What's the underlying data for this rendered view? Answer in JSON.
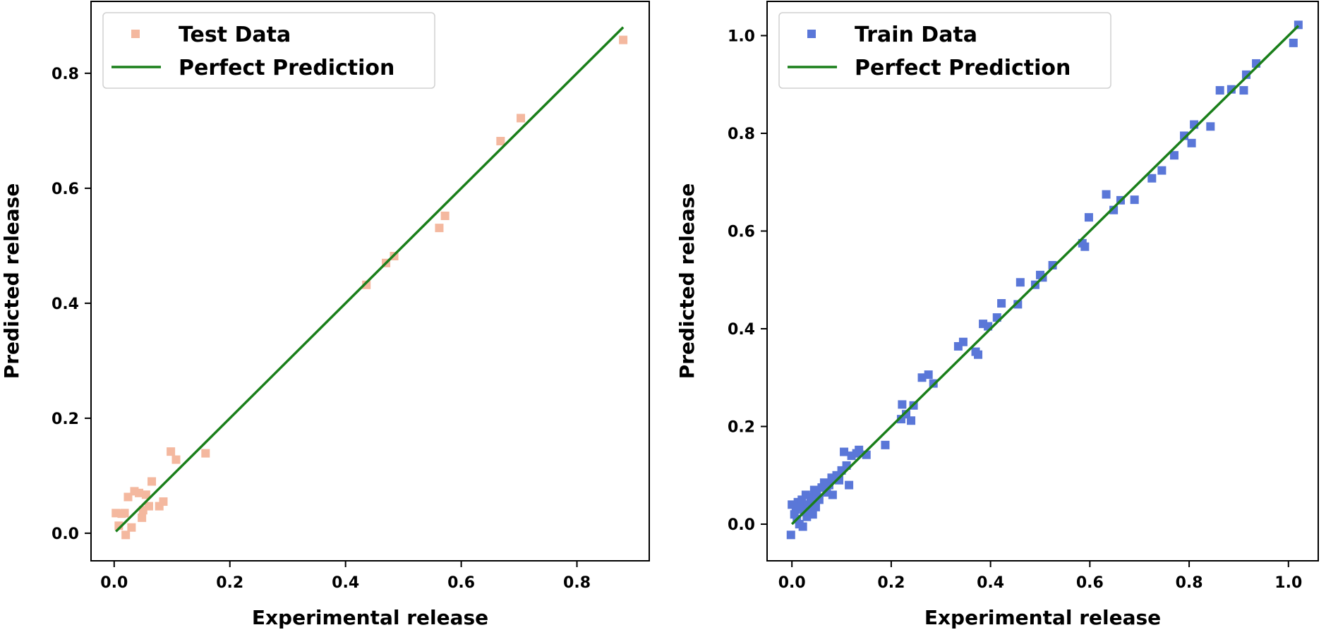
{
  "colors": {
    "test_marker": "#f4b89f",
    "train_marker": "#5a77d8",
    "perfect_line": "#1a7f1a",
    "axes": "#000000",
    "legend_border": "#d0d0d0"
  },
  "chart_data": [
    {
      "type": "scatter",
      "xlabel": "Experimental release",
      "ylabel": "Predicted release",
      "xlim": [
        -0.04,
        0.925
      ],
      "ylim": [
        -0.048,
        0.925
      ],
      "xticks": [
        0.0,
        0.2,
        0.4,
        0.6,
        0.8
      ],
      "yticks": [
        0.0,
        0.2,
        0.4,
        0.6,
        0.8
      ],
      "xtick_labels": [
        "0.0",
        "0.2",
        "0.4",
        "0.6",
        "0.8"
      ],
      "ytick_labels": [
        "0.0",
        "0.2",
        "0.4",
        "0.6",
        "0.8"
      ],
      "grid": false,
      "legend_position": "top-left",
      "series": [
        {
          "name": "Test Data",
          "kind": "scatter",
          "marker": "square",
          "color": "#f4b89f",
          "points": [
            [
              0.003,
              0.035
            ],
            [
              0.008,
              0.013
            ],
            [
              0.013,
              0.034
            ],
            [
              0.018,
              0.035
            ],
            [
              0.02,
              -0.003
            ],
            [
              0.024,
              0.063
            ],
            [
              0.03,
              0.01
            ],
            [
              0.035,
              0.073
            ],
            [
              0.043,
              0.07
            ],
            [
              0.048,
              0.027
            ],
            [
              0.05,
              0.04
            ],
            [
              0.055,
              0.067
            ],
            [
              0.06,
              0.047
            ],
            [
              0.065,
              0.09
            ],
            [
              0.078,
              0.047
            ],
            [
              0.085,
              0.055
            ],
            [
              0.098,
              0.142
            ],
            [
              0.107,
              0.128
            ],
            [
              0.158,
              0.139
            ],
            [
              0.436,
              0.432
            ],
            [
              0.47,
              0.47
            ],
            [
              0.484,
              0.482
            ],
            [
              0.562,
              0.531
            ],
            [
              0.572,
              0.552
            ],
            [
              0.668,
              0.682
            ],
            [
              0.703,
              0.722
            ],
            [
              0.88,
              0.858
            ]
          ]
        },
        {
          "name": "Perfect Prediction",
          "kind": "line",
          "color": "#1a7f1a",
          "points": [
            [
              0.003,
              0.003
            ],
            [
              0.88,
              0.88
            ]
          ]
        }
      ]
    },
    {
      "type": "scatter",
      "xlabel": "Experimental release",
      "ylabel": "Predicted release",
      "xlim": [
        -0.05,
        1.06
      ],
      "ylim": [
        -0.075,
        1.07
      ],
      "xticks": [
        0.0,
        0.2,
        0.4,
        0.6,
        0.8,
        1.0
      ],
      "yticks": [
        0.0,
        0.2,
        0.4,
        0.6,
        0.8,
        1.0
      ],
      "xtick_labels": [
        "0.0",
        "0.2",
        "0.4",
        "0.6",
        "0.8",
        "1.0"
      ],
      "ytick_labels": [
        "0.0",
        "0.2",
        "0.4",
        "0.6",
        "0.8",
        "1.0"
      ],
      "grid": false,
      "legend_position": "top-left",
      "series": [
        {
          "name": "Train Data",
          "kind": "scatter",
          "marker": "square",
          "color": "#5a77d8",
          "points": [
            [
              -0.002,
              -0.022
            ],
            [
              0.0,
              0.04
            ],
            [
              0.005,
              0.02
            ],
            [
              0.008,
              0.03
            ],
            [
              0.01,
              0.01
            ],
            [
              0.012,
              0.045
            ],
            [
              0.015,
              0.0
            ],
            [
              0.018,
              0.035
            ],
            [
              0.02,
              0.05
            ],
            [
              0.022,
              -0.005
            ],
            [
              0.025,
              0.025
            ],
            [
              0.028,
              0.06
            ],
            [
              0.03,
              0.015
            ],
            [
              0.032,
              0.04
            ],
            [
              0.035,
              0.03
            ],
            [
              0.038,
              0.055
            ],
            [
              0.04,
              0.045
            ],
            [
              0.042,
              0.02
            ],
            [
              0.045,
              0.07
            ],
            [
              0.048,
              0.035
            ],
            [
              0.05,
              0.06
            ],
            [
              0.055,
              0.05
            ],
            [
              0.06,
              0.075
            ],
            [
              0.065,
              0.085
            ],
            [
              0.07,
              0.065
            ],
            [
              0.075,
              0.08
            ],
            [
              0.08,
              0.095
            ],
            [
              0.082,
              0.06
            ],
            [
              0.09,
              0.1
            ],
            [
              0.095,
              0.09
            ],
            [
              0.1,
              0.11
            ],
            [
              0.105,
              0.148
            ],
            [
              0.11,
              0.12
            ],
            [
              0.115,
              0.08
            ],
            [
              0.12,
              0.14
            ],
            [
              0.13,
              0.145
            ],
            [
              0.135,
              0.152
            ],
            [
              0.15,
              0.142
            ],
            [
              0.188,
              0.162
            ],
            [
              0.22,
              0.215
            ],
            [
              0.222,
              0.245
            ],
            [
              0.23,
              0.225
            ],
            [
              0.24,
              0.212
            ],
            [
              0.245,
              0.243
            ],
            [
              0.262,
              0.3
            ],
            [
              0.275,
              0.306
            ],
            [
              0.285,
              0.288
            ],
            [
              0.335,
              0.364
            ],
            [
              0.345,
              0.373
            ],
            [
              0.37,
              0.353
            ],
            [
              0.375,
              0.347
            ],
            [
              0.385,
              0.41
            ],
            [
              0.395,
              0.405
            ],
            [
              0.413,
              0.423
            ],
            [
              0.422,
              0.452
            ],
            [
              0.455,
              0.45
            ],
            [
              0.46,
              0.495
            ],
            [
              0.49,
              0.49
            ],
            [
              0.5,
              0.51
            ],
            [
              0.505,
              0.505
            ],
            [
              0.525,
              0.53
            ],
            [
              0.585,
              0.575
            ],
            [
              0.59,
              0.568
            ],
            [
              0.598,
              0.628
            ],
            [
              0.633,
              0.675
            ],
            [
              0.648,
              0.643
            ],
            [
              0.662,
              0.663
            ],
            [
              0.69,
              0.664
            ],
            [
              0.725,
              0.708
            ],
            [
              0.745,
              0.724
            ],
            [
              0.77,
              0.755
            ],
            [
              0.79,
              0.795
            ],
            [
              0.805,
              0.78
            ],
            [
              0.81,
              0.818
            ],
            [
              0.843,
              0.814
            ],
            [
              0.862,
              0.888
            ],
            [
              0.885,
              0.89
            ],
            [
              0.91,
              0.888
            ],
            [
              0.915,
              0.92
            ],
            [
              0.935,
              0.943
            ],
            [
              1.01,
              0.985
            ],
            [
              1.02,
              1.022
            ]
          ]
        },
        {
          "name": "Perfect Prediction",
          "kind": "line",
          "color": "#1a7f1a",
          "points": [
            [
              0.0,
              0.0
            ],
            [
              1.02,
              1.02
            ]
          ]
        }
      ]
    }
  ]
}
